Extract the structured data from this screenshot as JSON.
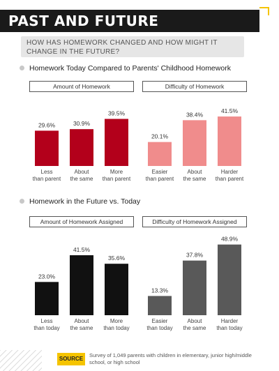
{
  "header": {
    "title": "PAST AND FUTURE",
    "question": "HOW HAS HOMEWORK CHANGED AND HOW MIGHT IT CHANGE IN THE FUTURE?"
  },
  "sections": [
    {
      "heading": "Homework Today Compared to Parents' Childhood Homework"
    },
    {
      "heading": "Homework in the Future vs. Today"
    }
  ],
  "colors": {
    "amount_today": "#b3001b",
    "difficulty_today": "#f08c8c",
    "amount_future": "#111111",
    "difficulty_future": "#595959"
  },
  "chart_data": [
    {
      "type": "bar",
      "title": "Amount of Homework",
      "categories": [
        "Less than parent",
        "About the same",
        "More than parent"
      ],
      "values": [
        29.6,
        30.9,
        39.5
      ],
      "labels": [
        "29.6%",
        "30.9%",
        "39.5%"
      ],
      "ylim": [
        0,
        55
      ]
    },
    {
      "type": "bar",
      "title": "Difficulty of Homework",
      "categories": [
        "Easier than parent",
        "About the same",
        "Harder than parent"
      ],
      "values": [
        20.1,
        38.4,
        41.5
      ],
      "labels": [
        "20.1%",
        "38.4%",
        "41.5%"
      ],
      "ylim": [
        0,
        55
      ]
    },
    {
      "type": "bar",
      "title": "Amount of Homework Assigned",
      "categories": [
        "Less than today",
        "About the same",
        "More than today"
      ],
      "values": [
        23.0,
        41.5,
        35.6
      ],
      "labels": [
        "23.0%",
        "41.5%",
        "35.6%"
      ],
      "ylim": [
        0,
        55
      ]
    },
    {
      "type": "bar",
      "title": "Difficulty of Homework Assigned",
      "categories": [
        "Easier than today",
        "About the same",
        "Harder than today"
      ],
      "values": [
        13.3,
        37.8,
        48.9
      ],
      "labels": [
        "13.3%",
        "37.8%",
        "48.9%"
      ],
      "ylim": [
        0,
        55
      ]
    }
  ],
  "source": {
    "badge": "SOURCE",
    "text": "Survey of 1,049 parents with children in elementary, junior high/middle school, or high school"
  }
}
